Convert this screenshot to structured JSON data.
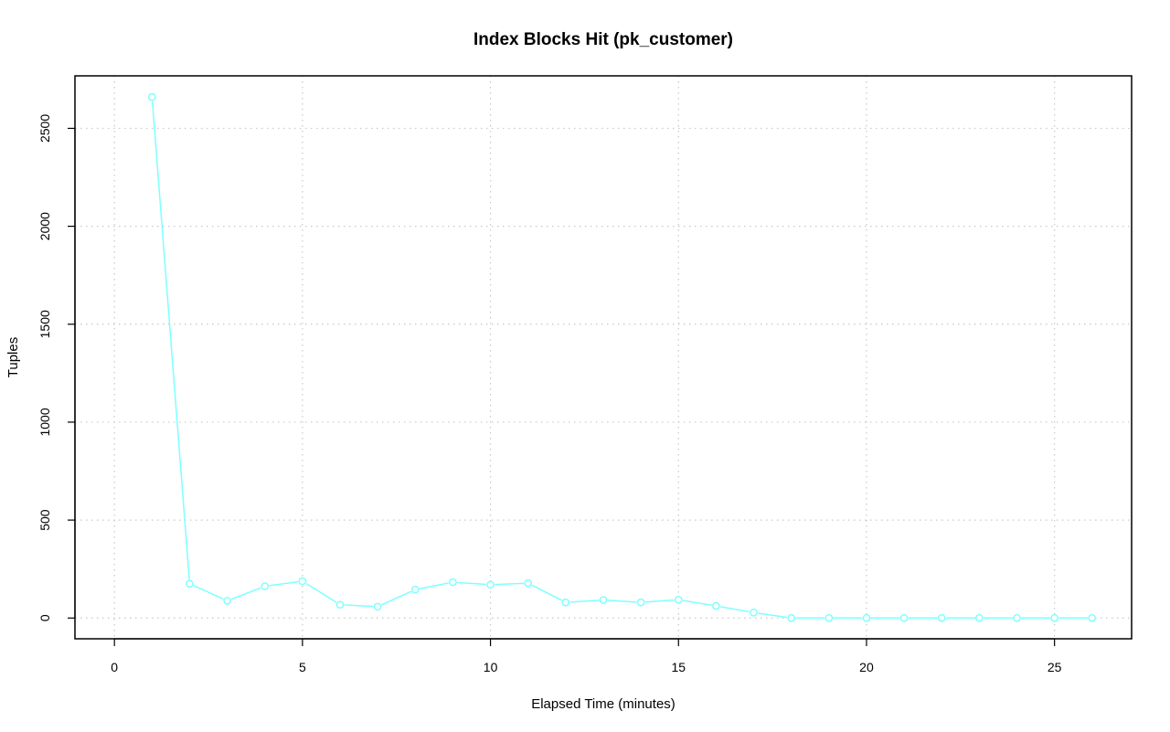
{
  "chart_data": {
    "type": "line",
    "title": "Index Blocks Hit (pk_customer)",
    "xlabel": "Elapsed Time (minutes)",
    "ylabel": "Tuples",
    "xlim": [
      -1.05,
      27.05
    ],
    "ylim": [
      -106,
      2768
    ],
    "xticks": [
      0,
      5,
      10,
      15,
      20,
      25
    ],
    "yticks": [
      0,
      500,
      1000,
      1500,
      2000,
      2500
    ],
    "grid": true,
    "series": [
      {
        "color": "#7fffff",
        "x": [
          1,
          2,
          3,
          4,
          5,
          6,
          7,
          8,
          9,
          10,
          11,
          12,
          13,
          14,
          15,
          16,
          17,
          18,
          19,
          20,
          21,
          22,
          23,
          24,
          25,
          26
        ],
        "y": [
          2660,
          175,
          88,
          162,
          188,
          68,
          58,
          145,
          183,
          170,
          178,
          80,
          92,
          80,
          93,
          62,
          28,
          0,
          0,
          0,
          0,
          0,
          0,
          0,
          0,
          0
        ]
      }
    ]
  }
}
